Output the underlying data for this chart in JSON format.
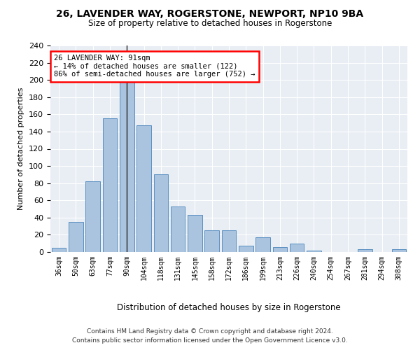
{
  "title": "26, LAVENDER WAY, ROGERSTONE, NEWPORT, NP10 9BA",
  "subtitle": "Size of property relative to detached houses in Rogerstone",
  "xlabel": "Distribution of detached houses by size in Rogerstone",
  "ylabel": "Number of detached properties",
  "categories": [
    "36sqm",
    "50sqm",
    "63sqm",
    "77sqm",
    "90sqm",
    "104sqm",
    "118sqm",
    "131sqm",
    "145sqm",
    "158sqm",
    "172sqm",
    "186sqm",
    "199sqm",
    "213sqm",
    "226sqm",
    "240sqm",
    "254sqm",
    "267sqm",
    "281sqm",
    "294sqm",
    "308sqm"
  ],
  "values": [
    5,
    35,
    82,
    155,
    202,
    147,
    90,
    53,
    43,
    25,
    25,
    7,
    17,
    6,
    10,
    2,
    0,
    0,
    3,
    0,
    3
  ],
  "bar_color": "#aac4e0",
  "bar_edge_color": "#5a8fc0",
  "annotation_text": "26 LAVENDER WAY: 91sqm\n← 14% of detached houses are smaller (122)\n86% of semi-detached houses are larger (752) →",
  "property_bar_index": 4,
  "ylim": [
    0,
    240
  ],
  "yticks": [
    0,
    20,
    40,
    60,
    80,
    100,
    120,
    140,
    160,
    180,
    200,
    220,
    240
  ],
  "background_color": "#e8eef4",
  "footer_line1": "Contains HM Land Registry data © Crown copyright and database right 2024.",
  "footer_line2": "Contains public sector information licensed under the Open Government Licence v3.0."
}
